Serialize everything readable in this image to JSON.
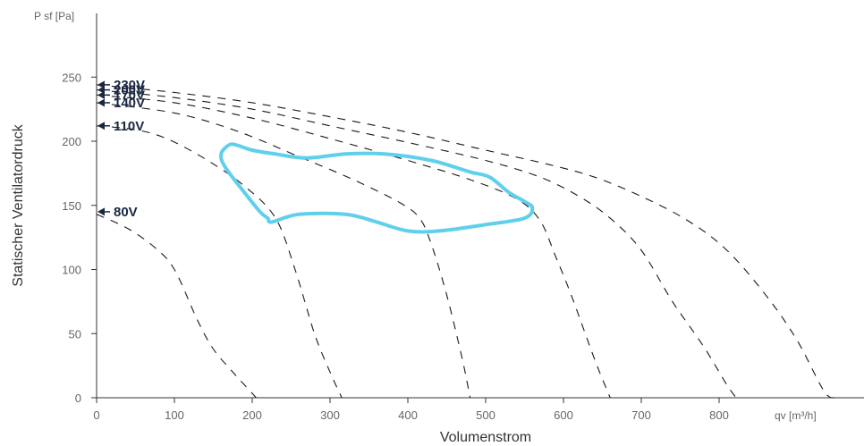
{
  "chart_data": {
    "type": "line",
    "title": "",
    "ylabel": "Statischer Ventilatordruck",
    "xlabel": "Volumenstrom",
    "y_unit_label": "P sf [Pa]",
    "x_unit_label": "qv [m³/h]",
    "xlim": [
      0,
      985
    ],
    "ylim": [
      0,
      300
    ],
    "x_ticks": [
      0,
      100,
      200,
      300,
      400,
      500,
      600,
      700,
      800
    ],
    "y_ticks": [
      0,
      50,
      100,
      150,
      200,
      250
    ],
    "grid": false,
    "envelope_color": "#5fd0ec",
    "curve_color": "#1a1a1a",
    "series": [
      {
        "name": "80V",
        "label_y": 145,
        "values": [
          [
            0,
            143
          ],
          [
            40,
            132
          ],
          [
            75,
            117
          ],
          [
            100,
            100
          ],
          [
            130,
            60
          ],
          [
            150,
            38
          ],
          [
            175,
            20
          ],
          [
            190,
            10
          ],
          [
            205,
            0
          ]
        ]
      },
      {
        "name": "110V",
        "label_y": 212,
        "values": [
          [
            0,
            212
          ],
          [
            50,
            209
          ],
          [
            90,
            202
          ],
          [
            140,
            186
          ],
          [
            190,
            165
          ],
          [
            230,
            140
          ],
          [
            255,
            100
          ],
          [
            280,
            50
          ],
          [
            300,
            20
          ],
          [
            315,
            0
          ]
        ]
      },
      {
        "name": "140V",
        "label_y": 230,
        "values": [
          [
            0,
            230
          ],
          [
            100,
            222
          ],
          [
            180,
            208
          ],
          [
            260,
            188
          ],
          [
            330,
            170
          ],
          [
            390,
            152
          ],
          [
            415,
            140
          ],
          [
            430,
            120
          ],
          [
            450,
            80
          ],
          [
            470,
            30
          ],
          [
            480,
            0
          ]
        ]
      },
      {
        "name": "170V",
        "label_y": 236,
        "values": [
          [
            0,
            236
          ],
          [
            100,
            230
          ],
          [
            200,
            218
          ],
          [
            300,
            202
          ],
          [
            400,
            185
          ],
          [
            480,
            170
          ],
          [
            540,
            155
          ],
          [
            570,
            138
          ],
          [
            590,
            110
          ],
          [
            610,
            80
          ],
          [
            640,
            30
          ],
          [
            660,
            0
          ]
        ]
      },
      {
        "name": "200V",
        "label_y": 240,
        "values": [
          [
            0,
            240
          ],
          [
            100,
            234
          ],
          [
            200,
            225
          ],
          [
            300,
            212
          ],
          [
            400,
            199
          ],
          [
            500,
            185
          ],
          [
            570,
            172
          ],
          [
            620,
            157
          ],
          [
            660,
            140
          ],
          [
            700,
            115
          ],
          [
            740,
            75
          ],
          [
            780,
            40
          ],
          [
            810,
            10
          ],
          [
            822,
            0
          ]
        ]
      },
      {
        "name": "230V",
        "label_y": 244,
        "values": [
          [
            0,
            244
          ],
          [
            100,
            238
          ],
          [
            200,
            230
          ],
          [
            300,
            219
          ],
          [
            400,
            207
          ],
          [
            500,
            193
          ],
          [
            580,
            182
          ],
          [
            640,
            172
          ],
          [
            700,
            157
          ],
          [
            760,
            138
          ],
          [
            810,
            115
          ],
          [
            860,
            80
          ],
          [
            900,
            45
          ],
          [
            935,
            5
          ],
          [
            950,
            0
          ]
        ]
      }
    ],
    "envelope": [
      [
        180,
        197
      ],
      [
        200,
        193
      ],
      [
        230,
        190
      ],
      [
        270,
        187
      ],
      [
        320,
        190
      ],
      [
        370,
        190
      ],
      [
        430,
        185
      ],
      [
        480,
        176
      ],
      [
        505,
        172
      ],
      [
        530,
        160
      ],
      [
        550,
        153
      ],
      [
        560,
        148
      ],
      [
        550,
        140
      ],
      [
        500,
        135
      ],
      [
        440,
        130
      ],
      [
        400,
        130
      ],
      [
        360,
        137
      ],
      [
        320,
        143
      ],
      [
        260,
        143
      ],
      [
        225,
        137
      ],
      [
        220,
        140
      ],
      [
        210,
        145
      ],
      [
        190,
        160
      ],
      [
        165,
        180
      ],
      [
        160,
        190
      ],
      [
        170,
        197
      ],
      [
        180,
        197
      ]
    ]
  }
}
